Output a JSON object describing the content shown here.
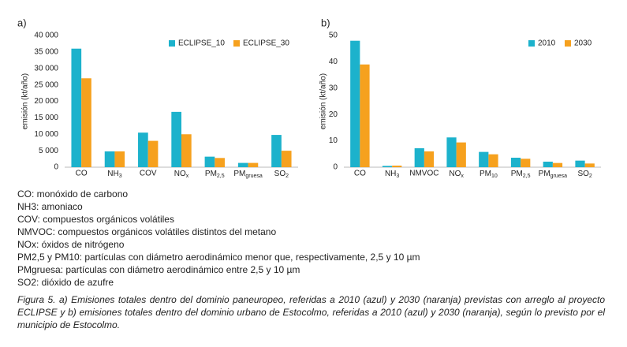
{
  "chart_data": [
    {
      "type": "bar",
      "label": "a)",
      "y_label": "emisión (kt/año)",
      "categories": [
        "CO",
        "NH3",
        "COV",
        "NOx",
        "PM2,5",
        "PMgruesa",
        "SO2"
      ],
      "series": [
        {
          "name": "ECLIPSE_10",
          "color": "#1cb2cc",
          "values": [
            36000,
            4800,
            10500,
            16800,
            3200,
            1300,
            9800
          ]
        },
        {
          "name": "ECLIPSE_30",
          "color": "#f6a11e",
          "values": [
            27000,
            4800,
            8000,
            10000,
            2800,
            1300,
            5000
          ]
        }
      ],
      "ylim": [
        0,
        40000
      ],
      "yticks": [
        0,
        {
          "value": 5000,
          "label": "5 000"
        },
        {
          "value": 10000,
          "label": "10 000"
        },
        {
          "value": 15000,
          "label": "15 000"
        },
        {
          "value": 20000,
          "label": "20 000"
        },
        {
          "value": 25000,
          "label": "25 000"
        },
        {
          "value": 30000,
          "label": "30 000"
        },
        {
          "value": 35000,
          "label": "35 000"
        },
        {
          "value": 40000,
          "label": "40 000"
        }
      ],
      "legend": "upper right"
    },
    {
      "type": "bar",
      "label": "b)",
      "y_label": "emisión (kt/año)",
      "categories": [
        "CO",
        "NH3",
        "NMVOC",
        "NOx",
        "PM10",
        "PM2,5",
        "PMgruesa",
        "SO2"
      ],
      "series": [
        {
          "name": "2010",
          "color": "#1cb2cc",
          "values": [
            48,
            0.5,
            7.2,
            11.3,
            5.8,
            3.6,
            2.1,
            2.5
          ]
        },
        {
          "name": "2030",
          "color": "#f6a11e",
          "values": [
            39,
            0.6,
            6.0,
            9.4,
            4.9,
            3.2,
            1.6,
            1.4
          ]
        }
      ],
      "ylim": [
        0,
        50
      ],
      "yticks": [
        0,
        10,
        20,
        30,
        40,
        50
      ],
      "legend": "upper right"
    }
  ],
  "notes": [
    "CO: monóxido de carbono",
    "NH3: amoniaco",
    "COV: compuestos orgánicos volátiles",
    "NMVOC: compuestos orgánicos volátiles distintos del metano",
    "NOx: óxidos de nitrógeno",
    "PM2,5 y PM10: partículas con diámetro aerodinámico menor que, respectivamente, 2,5 y 10 µm",
    "PMgruesa: partículas con diámetro aerodinámico entre 2,5 y 10 µm",
    "SO2: dióxido de azufre"
  ],
  "caption": "Figura 5. a) Emisiones totales dentro del dominio paneuropeo, referidas a 2010 (azul) y 2030 (naranja) previstas con arreglo al proyecto ECLIPSE y b) emisiones totales dentro del dominio urbano de Estocolmo, referidas a 2010 (azul) y 2030 (naranja), según lo previsto por el municipio de Estocolmo."
}
